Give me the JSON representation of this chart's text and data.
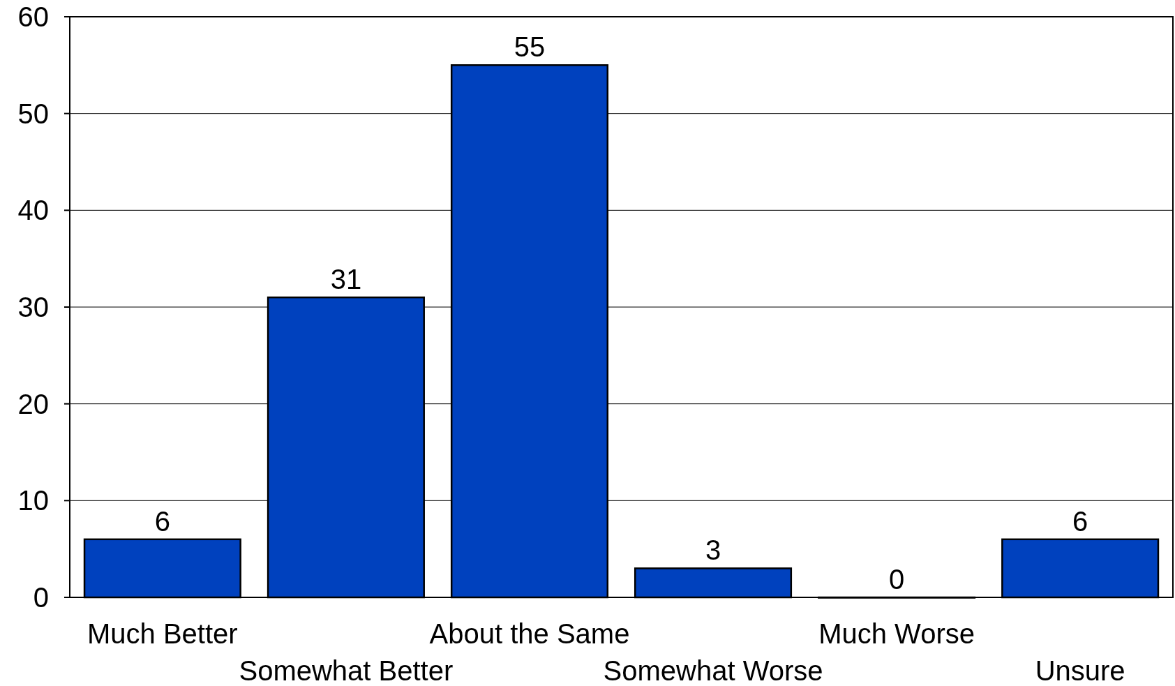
{
  "chart_data": {
    "type": "bar",
    "categories": [
      "Much Better",
      "Somewhat Better",
      "About the Same",
      "Somewhat Worse",
      "Much Worse",
      "Unsure"
    ],
    "values": [
      6,
      31,
      55,
      3,
      0,
      6
    ],
    "color": "#0041be",
    "ylim": [
      0,
      60
    ],
    "yticks": [
      0,
      10,
      20,
      30,
      40,
      50,
      60
    ],
    "grid": "y",
    "data_labels": true
  }
}
